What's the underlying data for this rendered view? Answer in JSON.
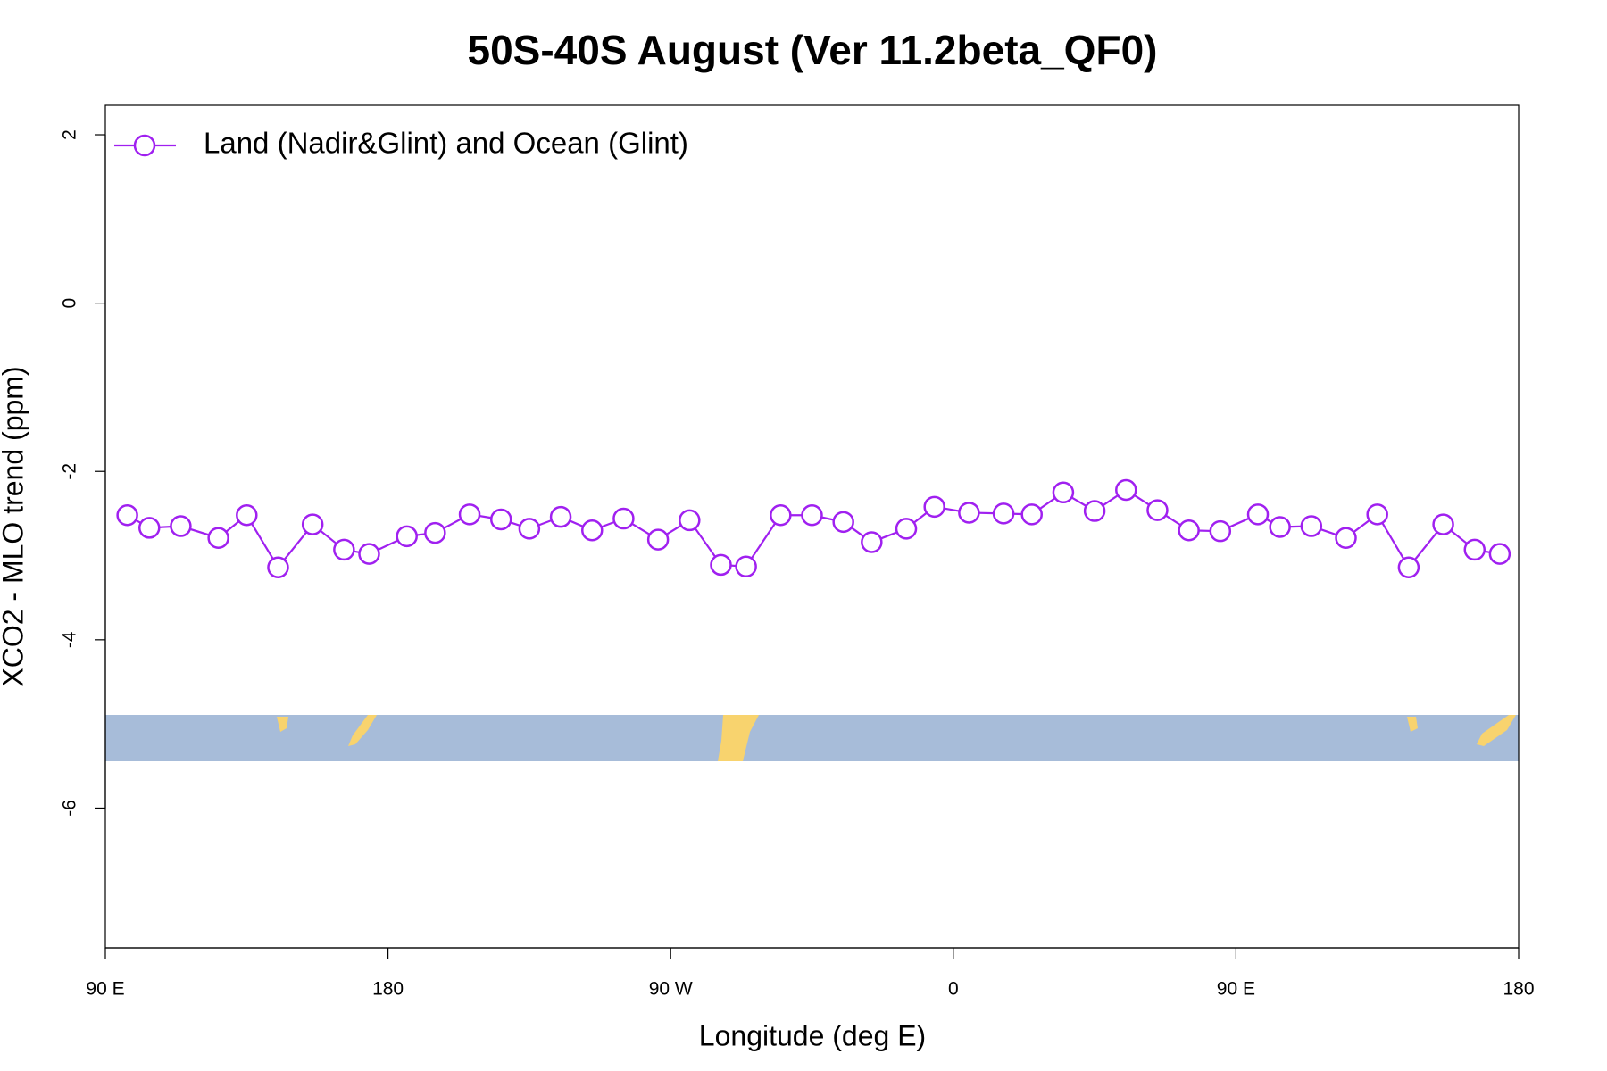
{
  "chart_data": {
    "type": "line",
    "title": "50S-40S August (Ver 11.2beta_QF0)",
    "x_label": "Longitude (deg E)",
    "y_label": "XCO2 - MLO trend (ppm)",
    "x": [
      97,
      104,
      114,
      126,
      135,
      145,
      156,
      166,
      174,
      186,
      195,
      206,
      216,
      225,
      235,
      245,
      255,
      266,
      276,
      286,
      294,
      305,
      315,
      325,
      334,
      345,
      354,
      365,
      376,
      385,
      395,
      405,
      415,
      425,
      435,
      445,
      457,
      464,
      474,
      485,
      495,
      505,
      516,
      526,
      534
    ],
    "series": [
      {
        "name": "Land (Nadir&Glint) and Ocean (Glint)",
        "color": "#a020f0",
        "values": [
          -2.52,
          -2.67,
          -2.65,
          -2.79,
          -2.52,
          -3.14,
          -2.63,
          -2.93,
          -2.98,
          -2.77,
          -2.73,
          -2.51,
          -2.57,
          -2.68,
          -2.54,
          -2.7,
          -2.56,
          -2.81,
          -2.58,
          -3.11,
          -3.13,
          -2.52,
          -2.52,
          -2.6,
          -2.84,
          -2.68,
          -2.42,
          -2.49,
          -2.5,
          -2.51,
          -2.25,
          -2.47,
          -2.22,
          -2.46,
          -2.7,
          -2.71,
          -2.51,
          -2.66,
          -2.65,
          -2.79,
          -2.51,
          -3.14,
          -2.63,
          -2.93,
          -2.98
        ]
      }
    ],
    "xlim": [
      90,
      540
    ],
    "xticks": [
      {
        "value": 90,
        "label": "90 E"
      },
      180,
      {
        "value": 270,
        "label": "90 W"
      },
      {
        "value": 360,
        "label": "0"
      },
      {
        "value": 450,
        "label": "90 E"
      },
      {
        "value": 540,
        "label": "180"
      }
    ],
    "ylim": [
      -7.66,
      2.35
    ],
    "yticks": [
      -6,
      -4,
      -2,
      0,
      2
    ],
    "legend": "top-left"
  }
}
